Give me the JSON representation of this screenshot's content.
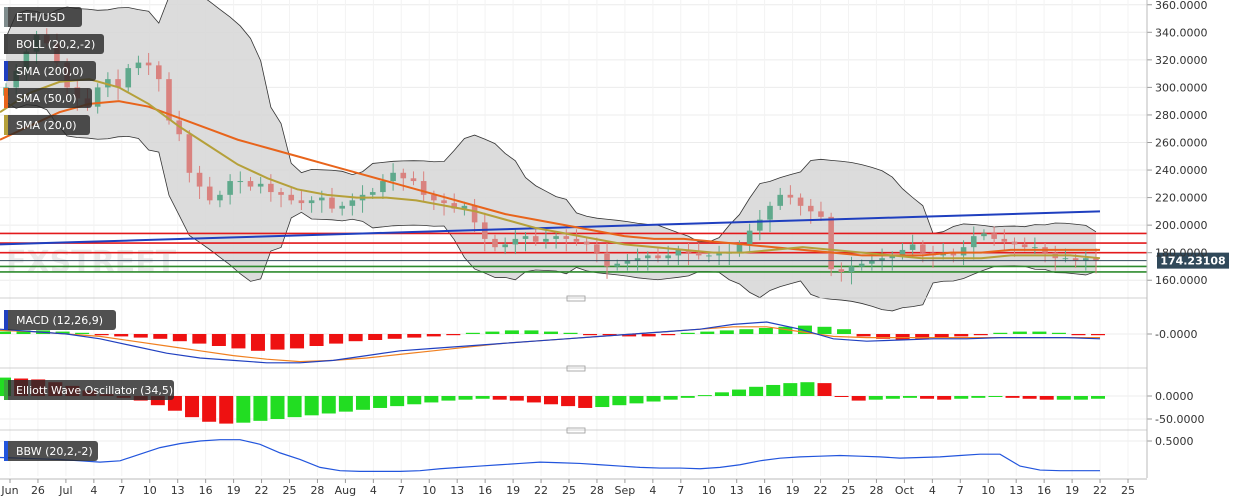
{
  "colors": {
    "up": "#5fa98c",
    "down": "#d9827f",
    "sma200": "#1f3fbf",
    "sma50": "#e8641b",
    "sma20": "#b5a03a",
    "band_fill": "#d6d6d6",
    "band_line": "#333333",
    "resistance": "#e31a1c",
    "support": "#2e8b2e",
    "price_tag": "#30495a",
    "macd_line": "#2040c0",
    "signal_line": "#f08020",
    "hist_pos": "#22dd22",
    "hist_neg": "#ee1111",
    "bbw_line": "#2255dd"
  },
  "watermark": "FXSTREET",
  "price_tag": "174.23108",
  "pane_labels": {
    "symbol": "ETH/USD",
    "boll": "BOLL (20,2,-2)",
    "sma200": "SMA (200,0)",
    "sma50": "SMA (50,0)",
    "sma20": "SMA (20,0)",
    "macd": "MACD (12,26,9)",
    "ewo": "Elliott Wave Oscillator (34,5)",
    "bbw": "BBW (20,2,-2)"
  },
  "chart_data": [
    {
      "type": "candlestick",
      "series": [
        {
          "name": "ETH/USD"
        },
        {
          "name": "BOLL (20,2,-2)"
        },
        {
          "name": "SMA (200,0)"
        },
        {
          "name": "SMA (50,0)"
        },
        {
          "name": "SMA (20,0)"
        }
      ],
      "y_ticks": [
        "360.0000",
        "340.0000",
        "320.0000",
        "300.0000",
        "280.0000",
        "260.0000",
        "240.0000",
        "220.0000",
        "200.0000",
        "180.0000",
        "160.0000"
      ],
      "ylim": [
        150,
        362
      ],
      "horizontal_levels": {
        "resistance": [
          194,
          187,
          180
        ],
        "support": [
          170,
          166
        ]
      },
      "last_price": 174.23,
      "closes": [
        300,
        312,
        326,
        338,
        332,
        318,
        300,
        292,
        286,
        300,
        306,
        300,
        314,
        318,
        316,
        306,
        276,
        266,
        238,
        228,
        218,
        222,
        232,
        232,
        228,
        230,
        224,
        222,
        218,
        216,
        218,
        220,
        212,
        214,
        218,
        222,
        224,
        232,
        238,
        234,
        232,
        222,
        218,
        216,
        212,
        214,
        202,
        190,
        184,
        186,
        190,
        192,
        188,
        190,
        192,
        190,
        188,
        186,
        180,
        170,
        172,
        174,
        176,
        178,
        176,
        178,
        182,
        180,
        178,
        178,
        180,
        180,
        186,
        196,
        204,
        214,
        222,
        220,
        214,
        210,
        206,
        168,
        166,
        170,
        172,
        174,
        176,
        178,
        182,
        186,
        180,
        178,
        180,
        178,
        184,
        192,
        194,
        190,
        188,
        186,
        184,
        184,
        180,
        176,
        176,
        174,
        176,
        174
      ],
      "sma200": [
        186,
        187,
        188,
        189,
        190,
        191,
        192,
        193,
        194,
        195,
        196,
        197,
        198,
        199,
        200,
        201,
        202,
        203,
        204,
        205,
        206,
        207,
        208,
        209,
        210
      ],
      "sma50": [
        262,
        272,
        282,
        288,
        290,
        286,
        278,
        270,
        262,
        256,
        250,
        244,
        238,
        232,
        226,
        220,
        214,
        208,
        204,
        200,
        196,
        192,
        190,
        190,
        188,
        186,
        184,
        182,
        180,
        178,
        178,
        178,
        180,
        180,
        182,
        182,
        182,
        182
      ],
      "sma20": [
        282,
        296,
        304,
        306,
        300,
        288,
        272,
        258,
        244,
        234,
        226,
        222,
        220,
        220,
        218,
        214,
        210,
        204,
        198,
        194,
        190,
        186,
        184,
        182,
        180,
        180,
        182,
        184,
        182,
        180,
        178,
        176,
        176,
        176,
        178,
        178,
        178,
        176
      ],
      "x_ticks": [
        "Jun",
        "26",
        "Jul",
        "4",
        "7",
        "10",
        "13",
        "16",
        "19",
        "22",
        "25",
        "28",
        "Aug",
        "4",
        "7",
        "10",
        "13",
        "16",
        "19",
        "22",
        "25",
        "28",
        "Sep",
        "4",
        "7",
        "10",
        "13",
        "16",
        "19",
        "22",
        "25",
        "28",
        "Oct",
        "4",
        "7",
        "10",
        "13",
        "16",
        "19",
        "22",
        "25"
      ]
    },
    {
      "type": "bar",
      "series": [
        {
          "name": "MACD (12,26,9)"
        }
      ],
      "y_ticks": [
        "-0.0000"
      ],
      "histogram": [
        2,
        3,
        3,
        2,
        1,
        -1,
        -2,
        -3,
        -4,
        -6,
        -8,
        -10,
        -12,
        -14,
        -13,
        -12,
        -10,
        -8,
        -6,
        -5,
        -4,
        -3,
        -2,
        -1,
        1,
        2,
        3,
        3,
        2,
        1,
        -1,
        -1,
        -2,
        -2,
        -1,
        1,
        2,
        3,
        4,
        5,
        6,
        7,
        6,
        4,
        -2,
        -4,
        -5,
        -4,
        -3,
        -2,
        -1,
        1,
        2,
        2,
        1,
        -1,
        -1
      ],
      "macd_line": [
        4,
        2,
        0,
        -4,
        -10,
        -16,
        -20,
        -22,
        -24,
        -24,
        -22,
        -18,
        -14,
        -12,
        -10,
        -8,
        -6,
        -4,
        -2,
        0,
        2,
        4,
        8,
        10,
        4,
        -4,
        -6,
        -5,
        -4,
        -4,
        -3,
        -3,
        -3,
        -4
      ],
      "signal_line": [
        3,
        2,
        0,
        -2,
        -6,
        -10,
        -14,
        -18,
        -21,
        -23,
        -22,
        -20,
        -17,
        -14,
        -11,
        -8,
        -6,
        -4,
        -2,
        0,
        2,
        4,
        6,
        6,
        2,
        -2,
        -3,
        -3,
        -3,
        -3,
        -3,
        -3,
        -3,
        -3
      ]
    },
    {
      "type": "bar",
      "series": [
        {
          "name": "Elliott Wave Oscillator (34,5)"
        }
      ],
      "y_ticks": [
        "0.0000",
        "-50.0000"
      ],
      "values": [
        40,
        38,
        36,
        30,
        22,
        12,
        4,
        -4,
        -10,
        -20,
        -32,
        -46,
        -56,
        -60,
        -58,
        -54,
        -50,
        -46,
        -42,
        -38,
        -34,
        -30,
        -26,
        -22,
        -18,
        -14,
        -10,
        -8,
        -6,
        -8,
        -10,
        -14,
        -18,
        -22,
        -26,
        -24,
        -20,
        -16,
        -12,
        -8,
        -4,
        2,
        8,
        14,
        20,
        24,
        28,
        30,
        28,
        -2,
        -10,
        -8,
        -6,
        -4,
        -6,
        -8,
        -6,
        -4,
        -2,
        -4,
        -6,
        -8,
        -8,
        -8,
        -6
      ]
    },
    {
      "type": "line",
      "series": [
        {
          "name": "BBW (20,2,-2)"
        }
      ],
      "y_ticks": [
        "0.5000"
      ],
      "values": [
        0.25,
        0.24,
        0.23,
        0.22,
        0.2,
        0.18,
        0.2,
        0.3,
        0.4,
        0.46,
        0.5,
        0.52,
        0.52,
        0.45,
        0.32,
        0.22,
        0.1,
        0.05,
        0.04,
        0.04,
        0.04,
        0.05,
        0.08,
        0.1,
        0.12,
        0.14,
        0.16,
        0.18,
        0.17,
        0.16,
        0.14,
        0.12,
        0.1,
        0.09,
        0.09,
        0.08,
        0.1,
        0.14,
        0.2,
        0.24,
        0.26,
        0.27,
        0.28,
        0.27,
        0.26,
        0.24,
        0.25,
        0.26,
        0.28,
        0.3,
        0.3,
        0.12,
        0.06,
        0.05,
        0.05,
        0.05
      ]
    }
  ]
}
